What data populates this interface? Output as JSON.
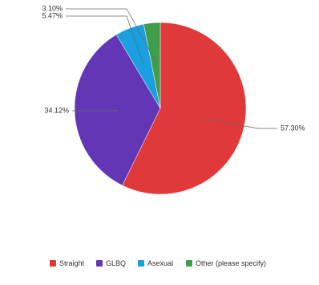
{
  "chart_data": {
    "type": "pie",
    "categories": [
      "Straight",
      "GLBQ",
      "Asexual",
      "Other (please specify)"
    ],
    "values": [
      57.3,
      34.12,
      5.47,
      3.1
    ],
    "value_labels": [
      "57.30%",
      "34.12%",
      "5.47%",
      "3.10%"
    ],
    "colors": [
      "#e0393a",
      "#6236b5",
      "#1aa0e0",
      "#3f9e4a"
    ],
    "legend": "bottom"
  }
}
